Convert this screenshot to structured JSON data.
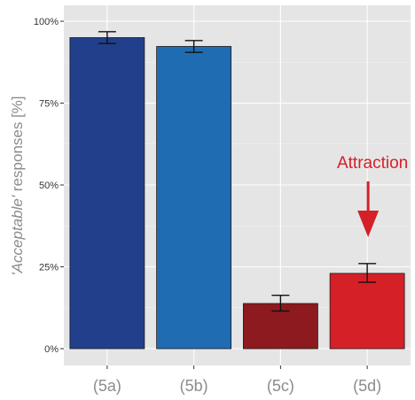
{
  "chart_data": {
    "type": "bar",
    "title": "",
    "xlabel": "",
    "ylabel": {
      "italic": "'Acceptable'",
      "rest": " responses [%]"
    },
    "categories": [
      "(5a)",
      "(5b)",
      "(5c)",
      "(5d)"
    ],
    "values": [
      95.0,
      92.3,
      13.8,
      23.0
    ],
    "error_low": [
      93.2,
      90.5,
      11.5,
      20.3
    ],
    "error_high": [
      96.8,
      94.1,
      16.3,
      26.0
    ],
    "colors": [
      "#213f8a",
      "#1f6cb3",
      "#8d1a1e",
      "#d62028"
    ],
    "ylim": [
      0,
      100
    ],
    "yticks": [
      0,
      25,
      50,
      75,
      100
    ],
    "ytick_labels": [
      "0%",
      "25%",
      "50%",
      "75%",
      "100%"
    ],
    "grid": true,
    "background": "#e5e5e5",
    "annotation": {
      "text": "Attraction",
      "target": "(5d)",
      "color": "#d42027"
    }
  }
}
